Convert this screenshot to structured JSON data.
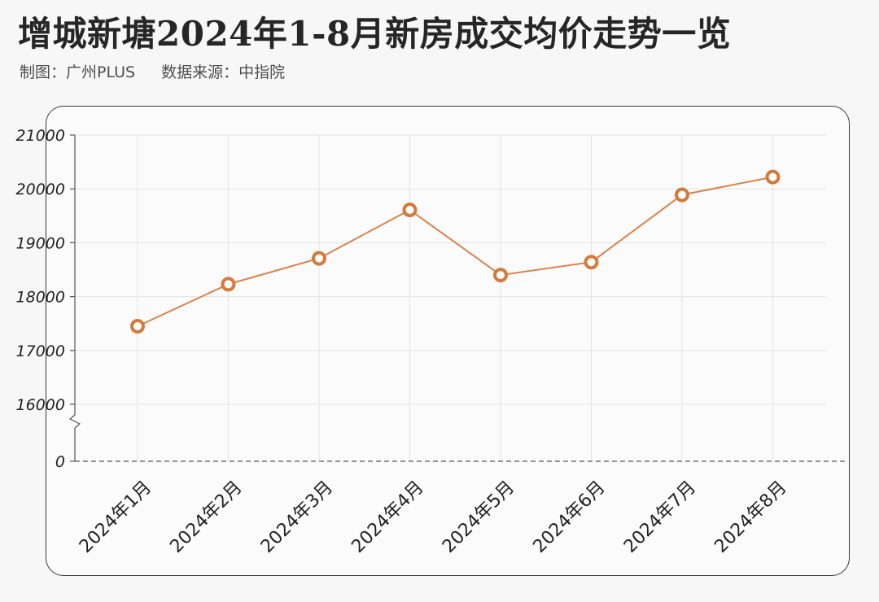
{
  "header": {
    "title": "增城新塘2024年1-8月新房成交均价走势一览",
    "maker": "制图：广州PLUS",
    "source": "数据来源：中指院"
  },
  "colors": {
    "line": "#d9834a",
    "marker": "#d47a3c",
    "grid": "#e3e3e3",
    "axis": "#555555"
  },
  "chart_data": {
    "type": "line",
    "title": "增城新塘2024年1-8月新房成交均价走势一览",
    "xlabel": "",
    "ylabel": "",
    "categories": [
      "2024年1月",
      "2024年2月",
      "2024年3月",
      "2024年4月",
      "2024年5月",
      "2024年6月",
      "2024年7月",
      "2024年8月"
    ],
    "series": [
      {
        "values": [
          17450,
          18230,
          18710,
          19610,
          18400,
          18640,
          19890,
          20220
        ]
      }
    ],
    "yticks": [
      "21000",
      "20000",
      "19000",
      "18000",
      "17000",
      "16000",
      "0"
    ],
    "ylim": [
      16000,
      21000
    ],
    "axis_break": true,
    "grid": true,
    "legend": "none"
  }
}
